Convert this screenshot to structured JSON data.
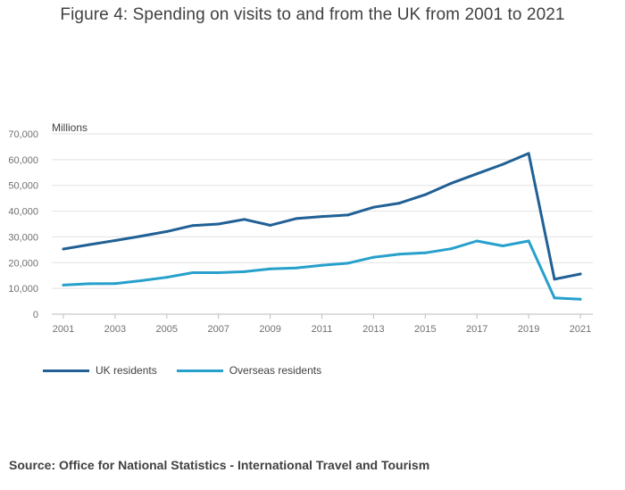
{
  "chart_data": {
    "type": "line",
    "title": "Figure 4: Spending on visits to and from the UK from 2001 to 2021",
    "ylabel": "Millions",
    "xlabel": "",
    "ylim": [
      0,
      70000
    ],
    "yticks": [
      0,
      10000,
      20000,
      30000,
      40000,
      50000,
      60000,
      70000
    ],
    "ytick_labels": [
      "0",
      "10,000",
      "20,000",
      "30,000",
      "40,000",
      "50,000",
      "60,000",
      "70,000"
    ],
    "xtick_labels": [
      "2001",
      "2003",
      "2005",
      "2007",
      "2009",
      "2011",
      "2013",
      "2015",
      "2017",
      "2019",
      "2021"
    ],
    "x": [
      2001,
      2002,
      2003,
      2004,
      2005,
      2006,
      2007,
      2008,
      2009,
      2010,
      2011,
      2012,
      2013,
      2014,
      2015,
      2016,
      2017,
      2018,
      2019,
      2020,
      2021
    ],
    "grid": true,
    "legend_position": "bottom-left",
    "series": [
      {
        "name": "UK residents",
        "color": "#206095",
        "values": [
          25300,
          27000,
          28600,
          30300,
          32100,
          34400,
          35000,
          36800,
          34500,
          37100,
          37900,
          38500,
          41500,
          43100,
          46400,
          50800,
          54500,
          58200,
          62400,
          13600,
          15600
        ]
      },
      {
        "name": "Overseas residents",
        "color": "#27A0CC",
        "values": [
          11300,
          11800,
          11900,
          13000,
          14300,
          16100,
          16100,
          16500,
          17600,
          17900,
          19000,
          19800,
          22100,
          23300,
          23800,
          25400,
          28400,
          26500,
          28400,
          6300,
          5800
        ]
      }
    ]
  },
  "source": "Source: Office for National Statistics - International Travel and Tourism"
}
